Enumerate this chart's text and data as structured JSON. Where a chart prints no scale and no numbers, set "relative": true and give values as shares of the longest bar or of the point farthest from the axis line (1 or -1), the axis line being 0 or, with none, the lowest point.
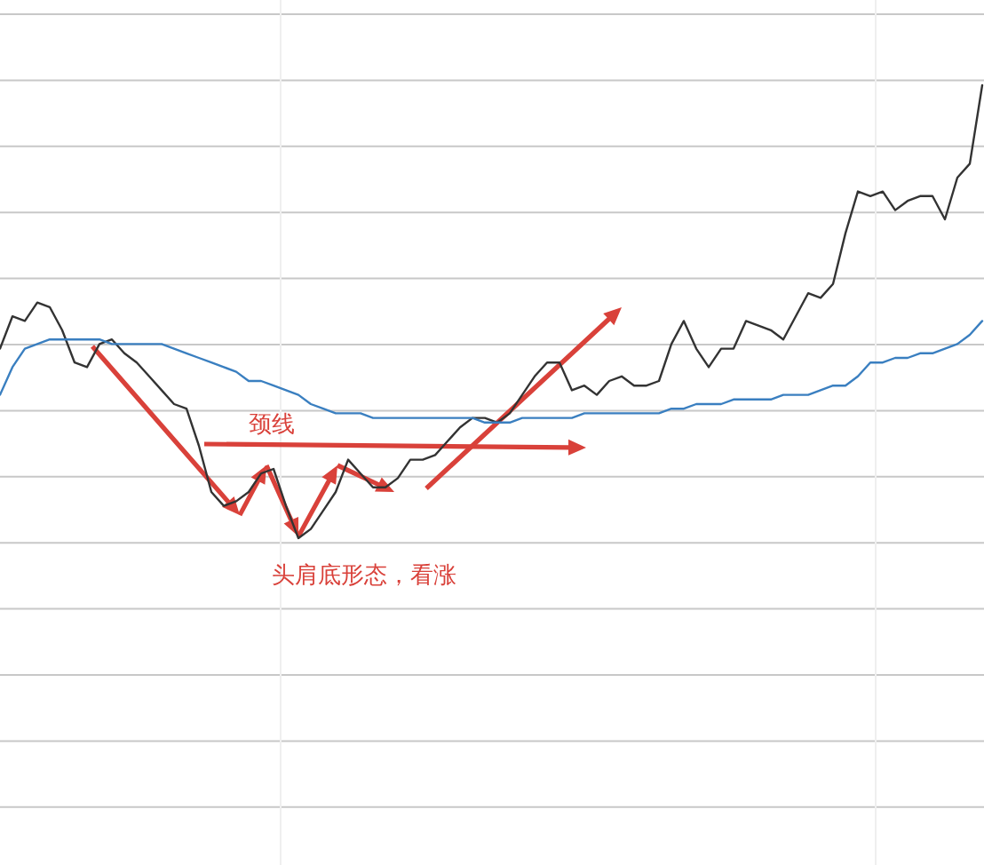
{
  "chart_data": {
    "type": "line",
    "relative": true,
    "grid": true,
    "line_style": "solid",
    "annotations": [
      "颈线",
      "头肩底形态，看涨"
    ],
    "categories": [
      null,
      null,
      null,
      null,
      null,
      null,
      null,
      null,
      null,
      null,
      null,
      null,
      null,
      null,
      null,
      null,
      null,
      null,
      null,
      null,
      null,
      null,
      null,
      null,
      null,
      null,
      null,
      null,
      null,
      null,
      null,
      null,
      null,
      null,
      null,
      null,
      null,
      null,
      null,
      null,
      null,
      null,
      null,
      null,
      null,
      null,
      null,
      null,
      null,
      null,
      null,
      null,
      null,
      null,
      null,
      null,
      null,
      null,
      null,
      null,
      null,
      null,
      null,
      null,
      null,
      null,
      null,
      null,
      null,
      null,
      null,
      null,
      null,
      null,
      null,
      null,
      null,
      null,
      null,
      null
    ],
    "series": [
      {
        "color": "#333333",
        "values": [
          0.43,
          0.5,
          0.49,
          0.53,
          0.52,
          0.47,
          0.4,
          0.39,
          0.44,
          0.45,
          0.42,
          0.4,
          0.37,
          0.34,
          0.31,
          0.3,
          0.22,
          0.12,
          0.09,
          0.1,
          0.12,
          0.16,
          0.17,
          0.09,
          0.02,
          0.04,
          0.08,
          0.12,
          0.19,
          0.16,
          0.13,
          0.13,
          0.15,
          0.19,
          0.19,
          0.2,
          0.23,
          0.26,
          0.28,
          0.28,
          0.27,
          0.29,
          0.33,
          0.37,
          0.4,
          0.4,
          0.34,
          0.35,
          0.33,
          0.36,
          0.37,
          0.35,
          0.35,
          0.36,
          0.44,
          0.49,
          0.43,
          0.39,
          0.43,
          0.43,
          0.49,
          0.48,
          0.47,
          0.45,
          0.5,
          0.55,
          0.54,
          0.57,
          0.68,
          0.77,
          0.76,
          0.77,
          0.73,
          0.75,
          0.76,
          0.76,
          0.71,
          0.8,
          0.83,
          1
        ]
      },
      {
        "color": "#3a7fc0",
        "values": [
          0.33,
          0.39,
          0.43,
          0.44,
          0.45,
          0.45,
          0.45,
          0.45,
          0.45,
          0.44,
          0.44,
          0.44,
          0.44,
          0.44,
          0.43,
          0.42,
          0.41,
          0.4,
          0.39,
          0.38,
          0.36,
          0.36,
          0.35,
          0.34,
          0.33,
          0.31,
          0.3,
          0.29,
          0.29,
          0.29,
          0.28,
          0.28,
          0.28,
          0.28,
          0.28,
          0.28,
          0.28,
          0.28,
          0.28,
          0.27,
          0.27,
          0.27,
          0.28,
          0.28,
          0.28,
          0.28,
          0.28,
          0.29,
          0.29,
          0.29,
          0.29,
          0.29,
          0.29,
          0.29,
          0.3,
          0.3,
          0.31,
          0.31,
          0.31,
          0.32,
          0.32,
          0.32,
          0.32,
          0.33,
          0.33,
          0.33,
          0.34,
          0.35,
          0.35,
          0.37,
          0.4,
          0.4,
          0.41,
          0.41,
          0.42,
          0.42,
          0.43,
          0.44,
          0.46,
          0.49
        ]
      }
    ]
  }
}
